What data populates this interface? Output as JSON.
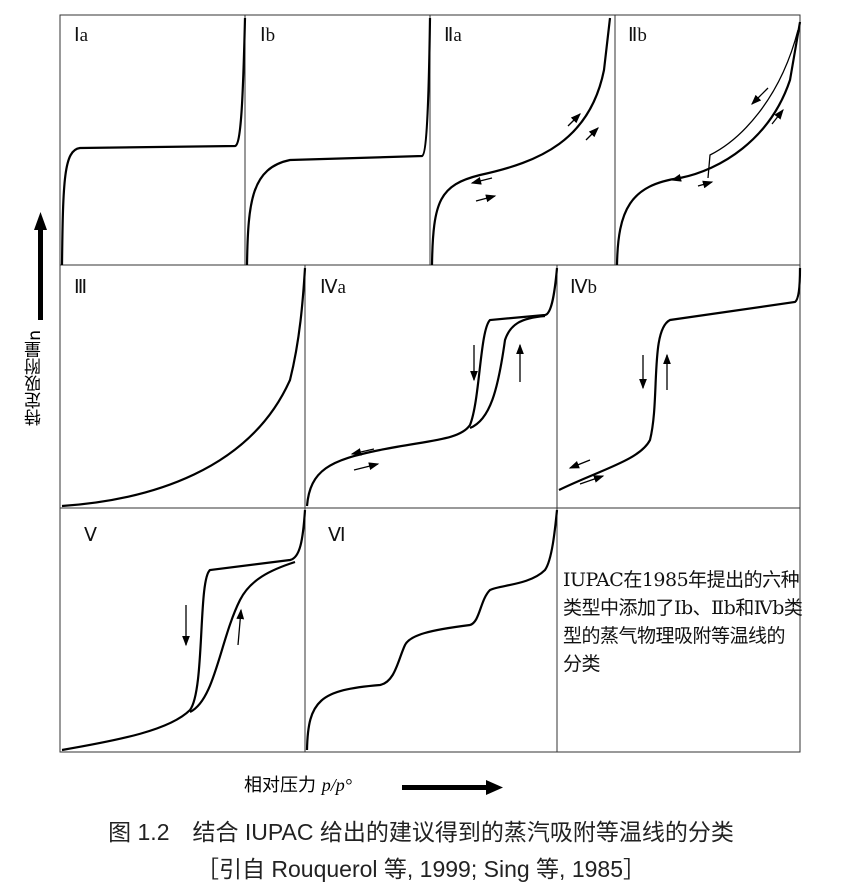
{
  "panels": [
    {
      "id": "Ia",
      "label": "Ⅰa"
    },
    {
      "id": "Ib",
      "label": "Ⅰb"
    },
    {
      "id": "IIa",
      "label": "Ⅱa"
    },
    {
      "id": "IIb",
      "label": "Ⅱb"
    },
    {
      "id": "III",
      "label": "Ⅲ"
    },
    {
      "id": "IVa",
      "label": "Ⅳa"
    },
    {
      "id": "IVb",
      "label": "Ⅳb"
    },
    {
      "id": "V",
      "label": "Ⅴ"
    },
    {
      "id": "VI",
      "label": "Ⅵ"
    }
  ],
  "note": "IUPAC在1985年提出的六种类型中添加了Ⅰb、Ⅱb和Ⅳb类型的蒸气物理吸附等温线的分类",
  "y_axis_label": "特定吸附量n",
  "x_axis_label_text": "相对压力",
  "x_axis_label_var": "p/p°",
  "caption": "图 1.2　结合 IUPAC 给出的建议得到的蒸汽吸附等温线的分类",
  "citation": "［引自 Rouquerol 等, 1999; Sing 等, 1985］"
}
